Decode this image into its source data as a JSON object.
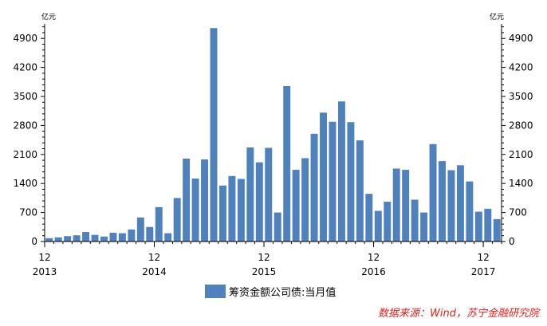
{
  "chart_data": {
    "type": "bar",
    "left_unit": "亿元",
    "right_unit": "亿元",
    "ylim": [
      0,
      5250
    ],
    "yticks": [
      0,
      700,
      1400,
      2100,
      2800,
      3500,
      4200,
      4900
    ],
    "x_tick_labels": [
      {
        "month": "12",
        "year": "2013",
        "index": 0
      },
      {
        "month": "12",
        "year": "2014",
        "index": 12
      },
      {
        "month": "12",
        "year": "2015",
        "index": 24
      },
      {
        "month": "12",
        "year": "2016",
        "index": 36
      },
      {
        "month": "12",
        "year": "2017",
        "index": 48
      }
    ],
    "series": [
      {
        "name": "筹资金额公司债:当月值",
        "color": "#4f81bd",
        "values": [
          80,
          100,
          130,
          150,
          230,
          160,
          120,
          210,
          200,
          290,
          580,
          350,
          830,
          200,
          1050,
          2000,
          1520,
          1980,
          5150,
          1350,
          1580,
          1510,
          2270,
          1910,
          2260,
          700,
          3750,
          1730,
          2010,
          2600,
          3110,
          2890,
          3380,
          2880,
          2440,
          1150,
          740,
          960,
          1760,
          1730,
          1010,
          700,
          2350,
          1940,
          1720,
          1840,
          1450,
          720,
          790,
          540
        ]
      }
    ]
  },
  "legend": {
    "label": "筹资金额公司债:当月值"
  },
  "source_note": "数据来源：Wind，苏宁金融研究院"
}
